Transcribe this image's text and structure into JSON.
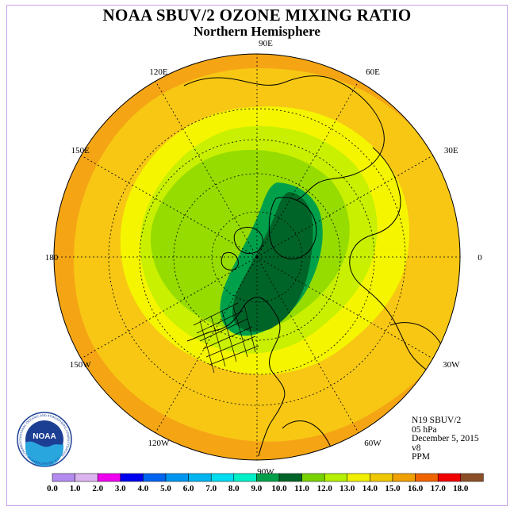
{
  "header": {
    "title": "NOAA SBUV/2 OZONE MIXING RATIO",
    "subtitle": "Northern Hemisphere"
  },
  "longitude_labels": [
    "90E",
    "60E",
    "30E",
    "0",
    "30W",
    "60W",
    "90W",
    "120W",
    "150W",
    "180",
    "150E",
    "120E"
  ],
  "info": {
    "satellite": "N19 SBUV/2",
    "pressure": "05 hPa",
    "date": "December 5, 2015",
    "version": "v8",
    "units": "PPM"
  },
  "logo": {
    "text": "NOAA",
    "ring_text": "NATIONAL OCEANIC AND ATMOSPHERIC ADMINISTRATION · U.S. DEPARTMENT OF COMMERCE"
  },
  "colorbar": {
    "labels": [
      "0.0",
      "1.0",
      "2.0",
      "3.0",
      "4.0",
      "5.0",
      "6.0",
      "7.0",
      "8.0",
      "9.0",
      "10.0",
      "11.0",
      "12.0",
      "13.0",
      "14.0",
      "15.0",
      "16.0",
      "17.0",
      "18.0"
    ],
    "colors": [
      "#b48cf0",
      "#dcb4f0",
      "#f000f0",
      "#0000f0",
      "#0064f0",
      "#0096f0",
      "#00b4f0",
      "#00dcf0",
      "#00f0c8",
      "#00a04b",
      "#006428",
      "#78d200",
      "#b4f000",
      "#f0f000",
      "#f0c800",
      "#f0a000",
      "#f06400",
      "#f00000",
      "#8c5028"
    ]
  },
  "map_colors": {
    "orange": "#f5a514",
    "light_orange": "#f7c714",
    "yellow": "#f5f500",
    "yellow_green": "#c8f000",
    "light_green": "#96dc00",
    "medium_green": "#00a04b",
    "dark_green": "#006428"
  }
}
